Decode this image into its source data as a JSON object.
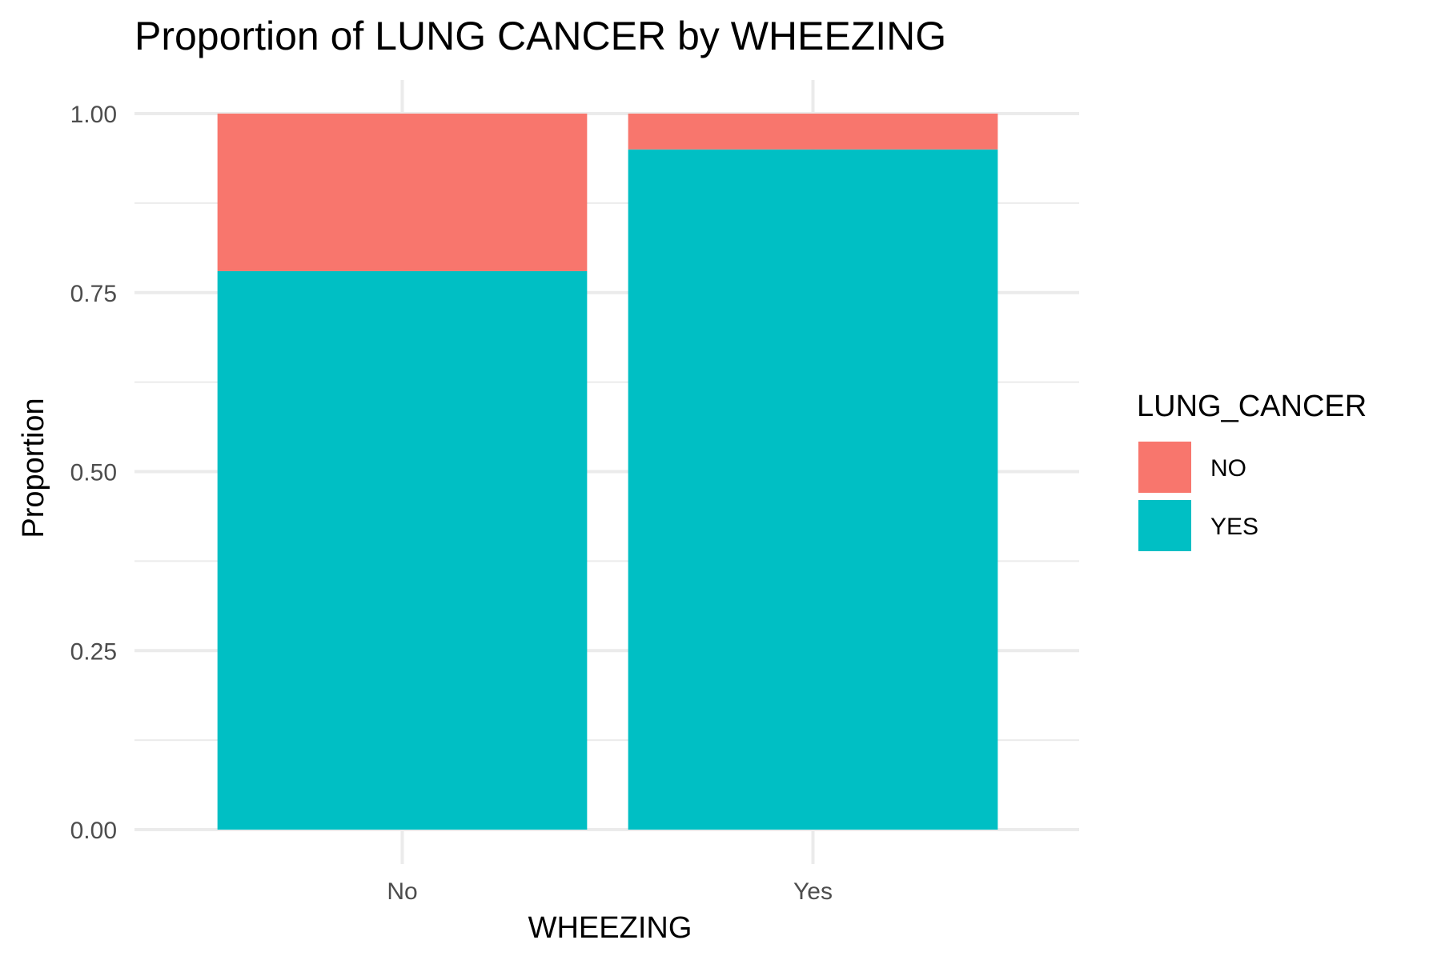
{
  "chart_data": {
    "type": "bar",
    "stacked": true,
    "title": "Proportion of LUNG CANCER by WHEEZING",
    "xlabel": "WHEEZING",
    "ylabel": "Proportion",
    "categories": [
      "No",
      "Yes"
    ],
    "series": [
      {
        "name": "NO",
        "values": [
          0.22,
          0.05
        ],
        "color": "#F8766D"
      },
      {
        "name": "YES",
        "values": [
          0.78,
          0.95
        ],
        "color": "#00BFC4"
      }
    ],
    "ylim": [
      0,
      1
    ],
    "yticks": [
      "0.00",
      "0.25",
      "0.50",
      "0.75",
      "1.00"
    ],
    "grid": true,
    "legend": {
      "title": "LUNG_CANCER",
      "position": "right"
    }
  }
}
